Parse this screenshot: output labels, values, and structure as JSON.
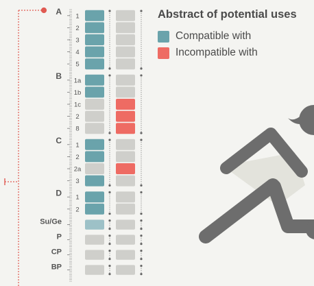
{
  "header": {
    "title": "Abstract of potential uses"
  },
  "legend": [
    {
      "label": "Compatible with",
      "color": "#6aa3ab"
    },
    {
      "label": "Incompatible with",
      "color": "#ee6b63"
    }
  ],
  "colors": {
    "compatible": "#6aa3ab",
    "compatible_light": "#9dc1c7",
    "incompatible": "#ee6b63",
    "neutral": "#cfcfcb",
    "label": "#555555",
    "connector": "#e05a52",
    "figure": "#6d6d6d",
    "figure_dress": "#e3e3dc"
  },
  "zones": [
    {
      "name": "A",
      "rows": [
        {
          "label": "1",
          "left": "compatible",
          "right": "neutral"
        },
        {
          "label": "2",
          "left": "compatible",
          "right": "neutral"
        },
        {
          "label": "3",
          "left": "compatible",
          "right": "neutral"
        },
        {
          "label": "4",
          "left": "compatible",
          "right": "neutral"
        },
        {
          "label": "5",
          "left": "compatible",
          "right": "neutral"
        }
      ]
    },
    {
      "name": "B",
      "rows": [
        {
          "label": "1a",
          "left": "compatible",
          "right": "neutral"
        },
        {
          "label": "1b",
          "left": "compatible",
          "right": "neutral"
        },
        {
          "label": "1c",
          "left": "neutral",
          "right": "incompatible"
        },
        {
          "label": "2",
          "left": "neutral",
          "right": "incompatible"
        },
        {
          "label": "8",
          "left": "neutral",
          "right": "incompatible"
        }
      ]
    },
    {
      "name": "C",
      "rows": [
        {
          "label": "1",
          "left": "compatible",
          "right": "neutral"
        },
        {
          "label": "2",
          "left": "compatible",
          "right": "neutral"
        },
        {
          "label": "2a",
          "left": "neutral",
          "right": "incompatible"
        },
        {
          "label": "3",
          "left": "compatible",
          "right": "neutral"
        }
      ]
    },
    {
      "name": "D",
      "rows": [
        {
          "label": "1",
          "left": "compatible",
          "right": "neutral"
        },
        {
          "label": "2",
          "left": "compatible",
          "right": "neutral"
        }
      ]
    },
    {
      "name": "Su/Ge",
      "rows": [
        {
          "label": "",
          "left": "compatible_light",
          "right": "neutral"
        }
      ]
    },
    {
      "name": "P",
      "rows": [
        {
          "label": "",
          "left": "neutral",
          "right": "neutral"
        }
      ]
    },
    {
      "name": "CP",
      "rows": [
        {
          "label": "",
          "left": "neutral",
          "right": "neutral"
        }
      ]
    },
    {
      "name": "BP",
      "rows": [
        {
          "label": "",
          "left": "neutral",
          "right": "neutral"
        }
      ]
    }
  ]
}
